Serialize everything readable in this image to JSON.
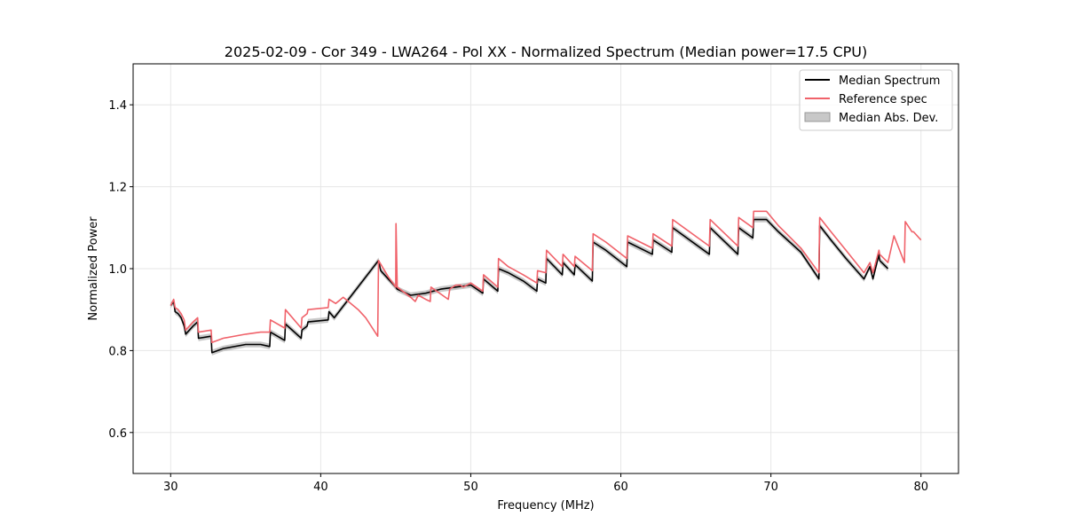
{
  "chart_data": {
    "type": "line",
    "title": "2025-02-09 - Cor 349 - LWA264 - Pol XX - Normalized Spectrum (Median power=17.5 CPU)",
    "xlabel": "Frequency (MHz)",
    "ylabel": "Normalized Power",
    "xlim": [
      27.5,
      82.5
    ],
    "ylim": [
      0.5,
      1.5
    ],
    "xticks": [
      30,
      40,
      50,
      60,
      70,
      80
    ],
    "yticks": [
      0.6,
      0.8,
      1.0,
      1.2,
      1.4
    ],
    "xtick_labels": [
      "30",
      "40",
      "50",
      "60",
      "70",
      "80"
    ],
    "ytick_labels": [
      "0.6",
      "0.8",
      "1.0",
      "1.2",
      "1.4"
    ],
    "grid": true,
    "legend_position": "top-right",
    "series": [
      {
        "name": "Median Spectrum",
        "color": "#000000",
        "x": [
          30.0,
          30.2,
          30.3,
          30.5,
          30.7,
          30.9,
          31.0,
          31.5,
          31.8,
          31.85,
          32.7,
          32.75,
          33.5,
          35.0,
          36.0,
          36.6,
          36.65,
          37.6,
          37.65,
          38.7,
          38.75,
          39.1,
          39.15,
          40.5,
          40.55,
          40.9,
          43.85,
          44.0,
          45.0,
          45.1,
          46.0,
          47.0,
          48.0,
          49.0,
          50.0,
          50.8,
          50.85,
          51.8,
          51.85,
          52.5,
          53.5,
          54.4,
          54.45,
          55.0,
          55.05,
          56.1,
          56.15,
          56.9,
          56.95,
          58.1,
          58.15,
          59.0,
          60.4,
          60.45,
          62.1,
          62.15,
          63.4,
          63.45,
          65.9,
          65.95,
          67.8,
          67.85,
          68.8,
          68.85,
          69.7,
          70.5,
          72.0,
          73.2,
          73.25,
          74.0,
          75.0,
          76.2,
          76.6,
          76.8,
          77.2,
          77.25,
          77.8
        ],
        "y": [
          0.91,
          0.92,
          0.895,
          0.89,
          0.88,
          0.86,
          0.84,
          0.86,
          0.87,
          0.83,
          0.835,
          0.795,
          0.805,
          0.815,
          0.815,
          0.81,
          0.845,
          0.825,
          0.865,
          0.83,
          0.85,
          0.86,
          0.87,
          0.875,
          0.895,
          0.88,
          1.02,
          0.995,
          0.955,
          0.95,
          0.935,
          0.94,
          0.95,
          0.955,
          0.96,
          0.94,
          0.975,
          0.945,
          1.0,
          0.99,
          0.97,
          0.945,
          0.975,
          0.965,
          1.025,
          0.985,
          1.015,
          0.985,
          1.01,
          0.97,
          1.065,
          1.045,
          1.005,
          1.065,
          1.035,
          1.07,
          1.04,
          1.1,
          1.035,
          1.1,
          1.035,
          1.1,
          1.075,
          1.12,
          1.12,
          1.09,
          1.04,
          0.975,
          1.105,
          1.07,
          1.025,
          0.975,
          1.005,
          0.975,
          1.035,
          1.02,
          1.0
        ]
      },
      {
        "name": "Reference spec",
        "color": "#f0626a",
        "x": [
          30.0,
          30.2,
          30.3,
          30.5,
          30.7,
          30.9,
          31.0,
          31.5,
          31.8,
          31.85,
          32.7,
          32.75,
          33.5,
          35.0,
          36.0,
          36.6,
          36.65,
          37.6,
          37.65,
          38.7,
          38.75,
          39.1,
          39.15,
          40.5,
          40.55,
          41.0,
          41.5,
          42.0,
          42.5,
          43.0,
          43.8,
          43.85,
          44.5,
          45.0,
          45.02,
          45.1,
          46.0,
          46.3,
          46.5,
          47.0,
          47.3,
          47.35,
          48.5,
          48.6,
          49.0,
          49.3,
          49.5,
          50.0,
          50.8,
          50.85,
          51.8,
          51.85,
          52.5,
          53.5,
          54.4,
          54.45,
          55.0,
          55.05,
          56.1,
          56.15,
          56.9,
          56.95,
          58.1,
          58.15,
          59.0,
          60.4,
          60.45,
          62.1,
          62.15,
          63.4,
          63.45,
          65.9,
          65.95,
          67.8,
          67.85,
          68.8,
          68.85,
          69.7,
          70.5,
          72.0,
          73.2,
          73.25,
          74.0,
          75.0,
          76.2,
          76.6,
          76.8,
          77.2,
          77.25,
          77.8,
          78.2,
          78.9,
          78.95,
          79.4,
          79.5,
          80.0
        ],
        "y": [
          0.91,
          0.925,
          0.905,
          0.9,
          0.89,
          0.875,
          0.85,
          0.87,
          0.88,
          0.845,
          0.85,
          0.82,
          0.83,
          0.84,
          0.845,
          0.845,
          0.875,
          0.855,
          0.9,
          0.855,
          0.88,
          0.89,
          0.9,
          0.905,
          0.925,
          0.915,
          0.93,
          0.915,
          0.9,
          0.88,
          0.835,
          1.02,
          0.98,
          0.955,
          1.11,
          0.955,
          0.93,
          0.92,
          0.935,
          0.925,
          0.92,
          0.955,
          0.925,
          0.95,
          0.96,
          0.96,
          0.955,
          0.965,
          0.945,
          0.985,
          0.955,
          1.025,
          1.005,
          0.985,
          0.965,
          0.995,
          0.99,
          1.045,
          1.005,
          1.035,
          1.005,
          1.03,
          0.995,
          1.085,
          1.065,
          1.025,
          1.08,
          1.05,
          1.085,
          1.055,
          1.12,
          1.055,
          1.12,
          1.055,
          1.125,
          1.1,
          1.14,
          1.14,
          1.105,
          1.05,
          0.99,
          1.125,
          1.09,
          1.045,
          0.99,
          1.015,
          0.99,
          1.045,
          1.035,
          1.015,
          1.08,
          1.015,
          1.115,
          1.09,
          1.09,
          1.07
        ]
      }
    ],
    "band": {
      "name": "Median Abs. Dev.",
      "color": "#c8c8c8",
      "half_width": 0.007
    }
  }
}
